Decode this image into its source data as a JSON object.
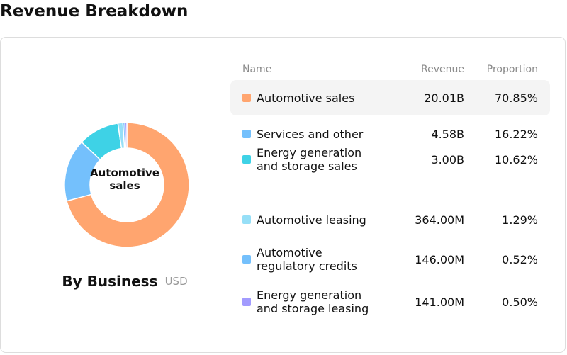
{
  "title": "Revenue Breakdown",
  "section": {
    "title": "By Business",
    "unit": "USD"
  },
  "donut_center_label": "Automotive sales",
  "table": {
    "headers": {
      "name": "Name",
      "revenue": "Revenue",
      "proportion": "Proportion"
    },
    "rows": [
      {
        "name": "Automotive sales",
        "revenue": "20.01B",
        "proportion": "70.85%",
        "color": "#FFA56F",
        "active": true
      },
      {
        "name": "Services and other",
        "revenue": "4.58B",
        "proportion": "16.22%",
        "color": "#74C0FC",
        "active": false
      },
      {
        "name": "Energy generation and storage sales",
        "revenue": "3.00B",
        "proportion": "10.62%",
        "color": "#3ED2E6",
        "active": false
      },
      {
        "name": "Automotive leasing",
        "revenue": "364.00M",
        "proportion": "1.29%",
        "color": "#96DFF7",
        "active": false
      },
      {
        "name": "Automotive regulatory credits",
        "revenue": "146.00M",
        "proportion": "0.52%",
        "color": "#74C0FC",
        "active": false
      },
      {
        "name": "Energy generation and storage leasing",
        "revenue": "141.00M",
        "proportion": "0.50%",
        "color": "#A29BFE",
        "active": false
      }
    ]
  },
  "chart_data": {
    "type": "pie",
    "variant": "donut",
    "title": "By Business",
    "unit": "USD",
    "categories": [
      "Automotive sales",
      "Services and other",
      "Energy generation and storage sales",
      "Automotive leasing",
      "Automotive regulatory credits",
      "Energy generation and storage leasing"
    ],
    "values": [
      70.85,
      16.22,
      10.62,
      1.29,
      0.52,
      0.5
    ],
    "colors": [
      "#FFA56F",
      "#74C0FC",
      "#3ED2E6",
      "#96DFF7",
      "#74C0FC",
      "#A29BFE"
    ],
    "highlighted": "Automotive sales"
  }
}
